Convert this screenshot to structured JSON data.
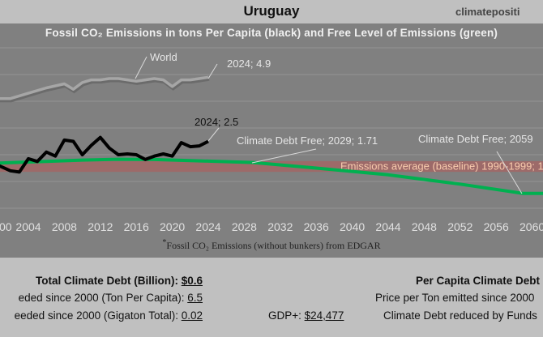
{
  "header": {
    "title": "Uruguay",
    "brand": "climatepositi"
  },
  "chart_data": {
    "type": "line",
    "title": "Fossil CO₂ Emissions in tons Per Capita (black) and Free Level of Emissions (green)",
    "footnote_mark": "*",
    "footnote": "Fossil CO₂ Emissions (without bunkers) from EDGAR",
    "xlim": [
      2000,
      2062
    ],
    "ylim": [
      0,
      7
    ],
    "x_ticks": [
      "00",
      "2004",
      "2008",
      "2012",
      "2016",
      "2020",
      "2024",
      "2028",
      "2032",
      "2036",
      "2040",
      "2044",
      "2048",
      "2052",
      "2056",
      "2060"
    ],
    "grid": true,
    "series": [
      {
        "name": "World",
        "color": "#a6a6a6",
        "x": [
          2000,
          2002,
          2004,
          2006,
          2008,
          2009,
          2010,
          2011,
          2012,
          2013,
          2014,
          2015,
          2016,
          2017,
          2018,
          2019,
          2020,
          2021,
          2022,
          2023,
          2024
        ],
        "y": [
          4.1,
          4.1,
          4.3,
          4.5,
          4.65,
          4.45,
          4.7,
          4.8,
          4.8,
          4.85,
          4.85,
          4.8,
          4.75,
          4.8,
          4.85,
          4.8,
          4.55,
          4.8,
          4.8,
          4.85,
          4.9
        ]
      },
      {
        "color": "#000000",
        "x": [
          2000,
          2001,
          2002,
          2003,
          2004,
          2005,
          2006,
          2007,
          2008,
          2009,
          2010,
          2011,
          2012,
          2013,
          2014,
          2015,
          2016,
          2017,
          2018,
          2019,
          2020,
          2021,
          2022,
          2023,
          2024
        ],
        "y": [
          1.7,
          1.55,
          1.4,
          1.35,
          1.85,
          1.75,
          2.1,
          1.95,
          2.55,
          2.5,
          2.0,
          2.35,
          2.65,
          2.25,
          2.0,
          2.03,
          2.0,
          1.82,
          1.95,
          2.03,
          1.95,
          2.45,
          2.3,
          2.33,
          2.5
        ]
      },
      {
        "color": "#00b050",
        "x": [
          2000,
          2006,
          2010,
          2014,
          2018,
          2024,
          2029,
          2036,
          2044,
          2052,
          2059,
          2062
        ],
        "y": [
          1.68,
          1.75,
          1.8,
          1.83,
          1.82,
          1.76,
          1.71,
          1.5,
          1.25,
          0.9,
          0.55,
          0.55
        ]
      }
    ],
    "baseline_band": {
      "range": [
        1.36,
        1.76
      ],
      "color": "#c0504d",
      "label": "Emissions average (baseline) 1990-1999; 1"
    },
    "annotations": [
      {
        "text": "World",
        "x": 2009,
        "y": 4.8
      },
      {
        "text": "2024; 4.9",
        "x": 2024,
        "y": 4.9
      },
      {
        "text": "2024; 2.5",
        "x": 2024,
        "y": 2.5
      },
      {
        "text": "Climate Debt Free; 2029; 1.71",
        "x": 2029,
        "y": 1.71
      },
      {
        "text": "Climate Debt Free; 2059",
        "x": 2059,
        "y": 0.55
      }
    ]
  },
  "stats": {
    "total_label": "Total Climate Debt (Billion): ",
    "total_value": "$0.6",
    "ton_label": "eded since 2000 (Ton Per Capita): ",
    "ton_value": "6.5",
    "giga_label": "eeded since 2000 (Gigaton Total): ",
    "giga_value": "0.02",
    "gdp_label": "GDP+: ",
    "gdp_value": "$24,477",
    "per_capita_label": "Per Capita Climate Debt",
    "price_label": "Price per Ton emitted since 2000",
    "funds_label": "Climate Debt reduced by Funds"
  }
}
